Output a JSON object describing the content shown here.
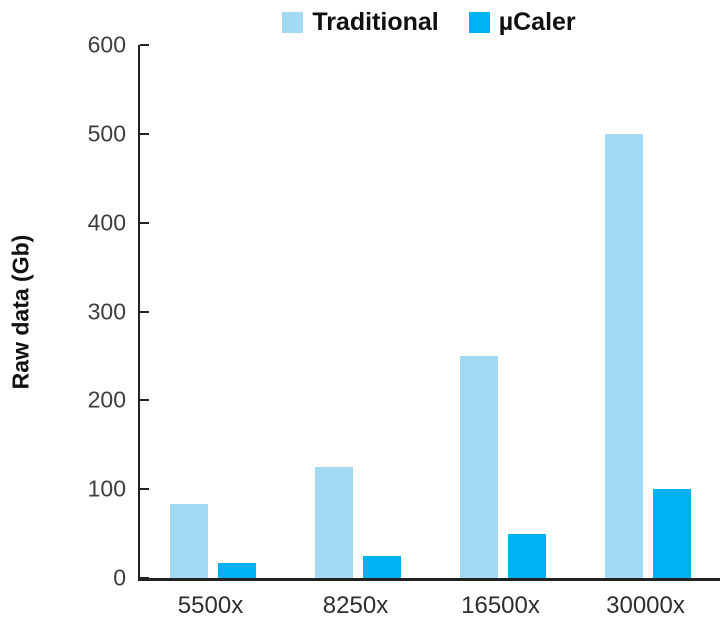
{
  "chart_data": {
    "type": "bar",
    "title": "",
    "categories": [
      "5500x",
      "8250x",
      "16500x",
      "30000x"
    ],
    "series": [
      {
        "name": "Traditional",
        "color": "#a4d9f4",
        "values": [
          83,
          125,
          250,
          500
        ]
      },
      {
        "name": "µCaler",
        "color": "#00b2f2",
        "values": [
          17,
          25,
          50,
          100
        ]
      }
    ],
    "xlabel": "",
    "ylabel": "Raw data (Gb)",
    "ylim": [
      0,
      600
    ],
    "yticks": [
      0,
      100,
      200,
      300,
      400,
      500,
      600
    ],
    "grid": false,
    "legend_position": "top-center",
    "axis_color": "#222222"
  }
}
